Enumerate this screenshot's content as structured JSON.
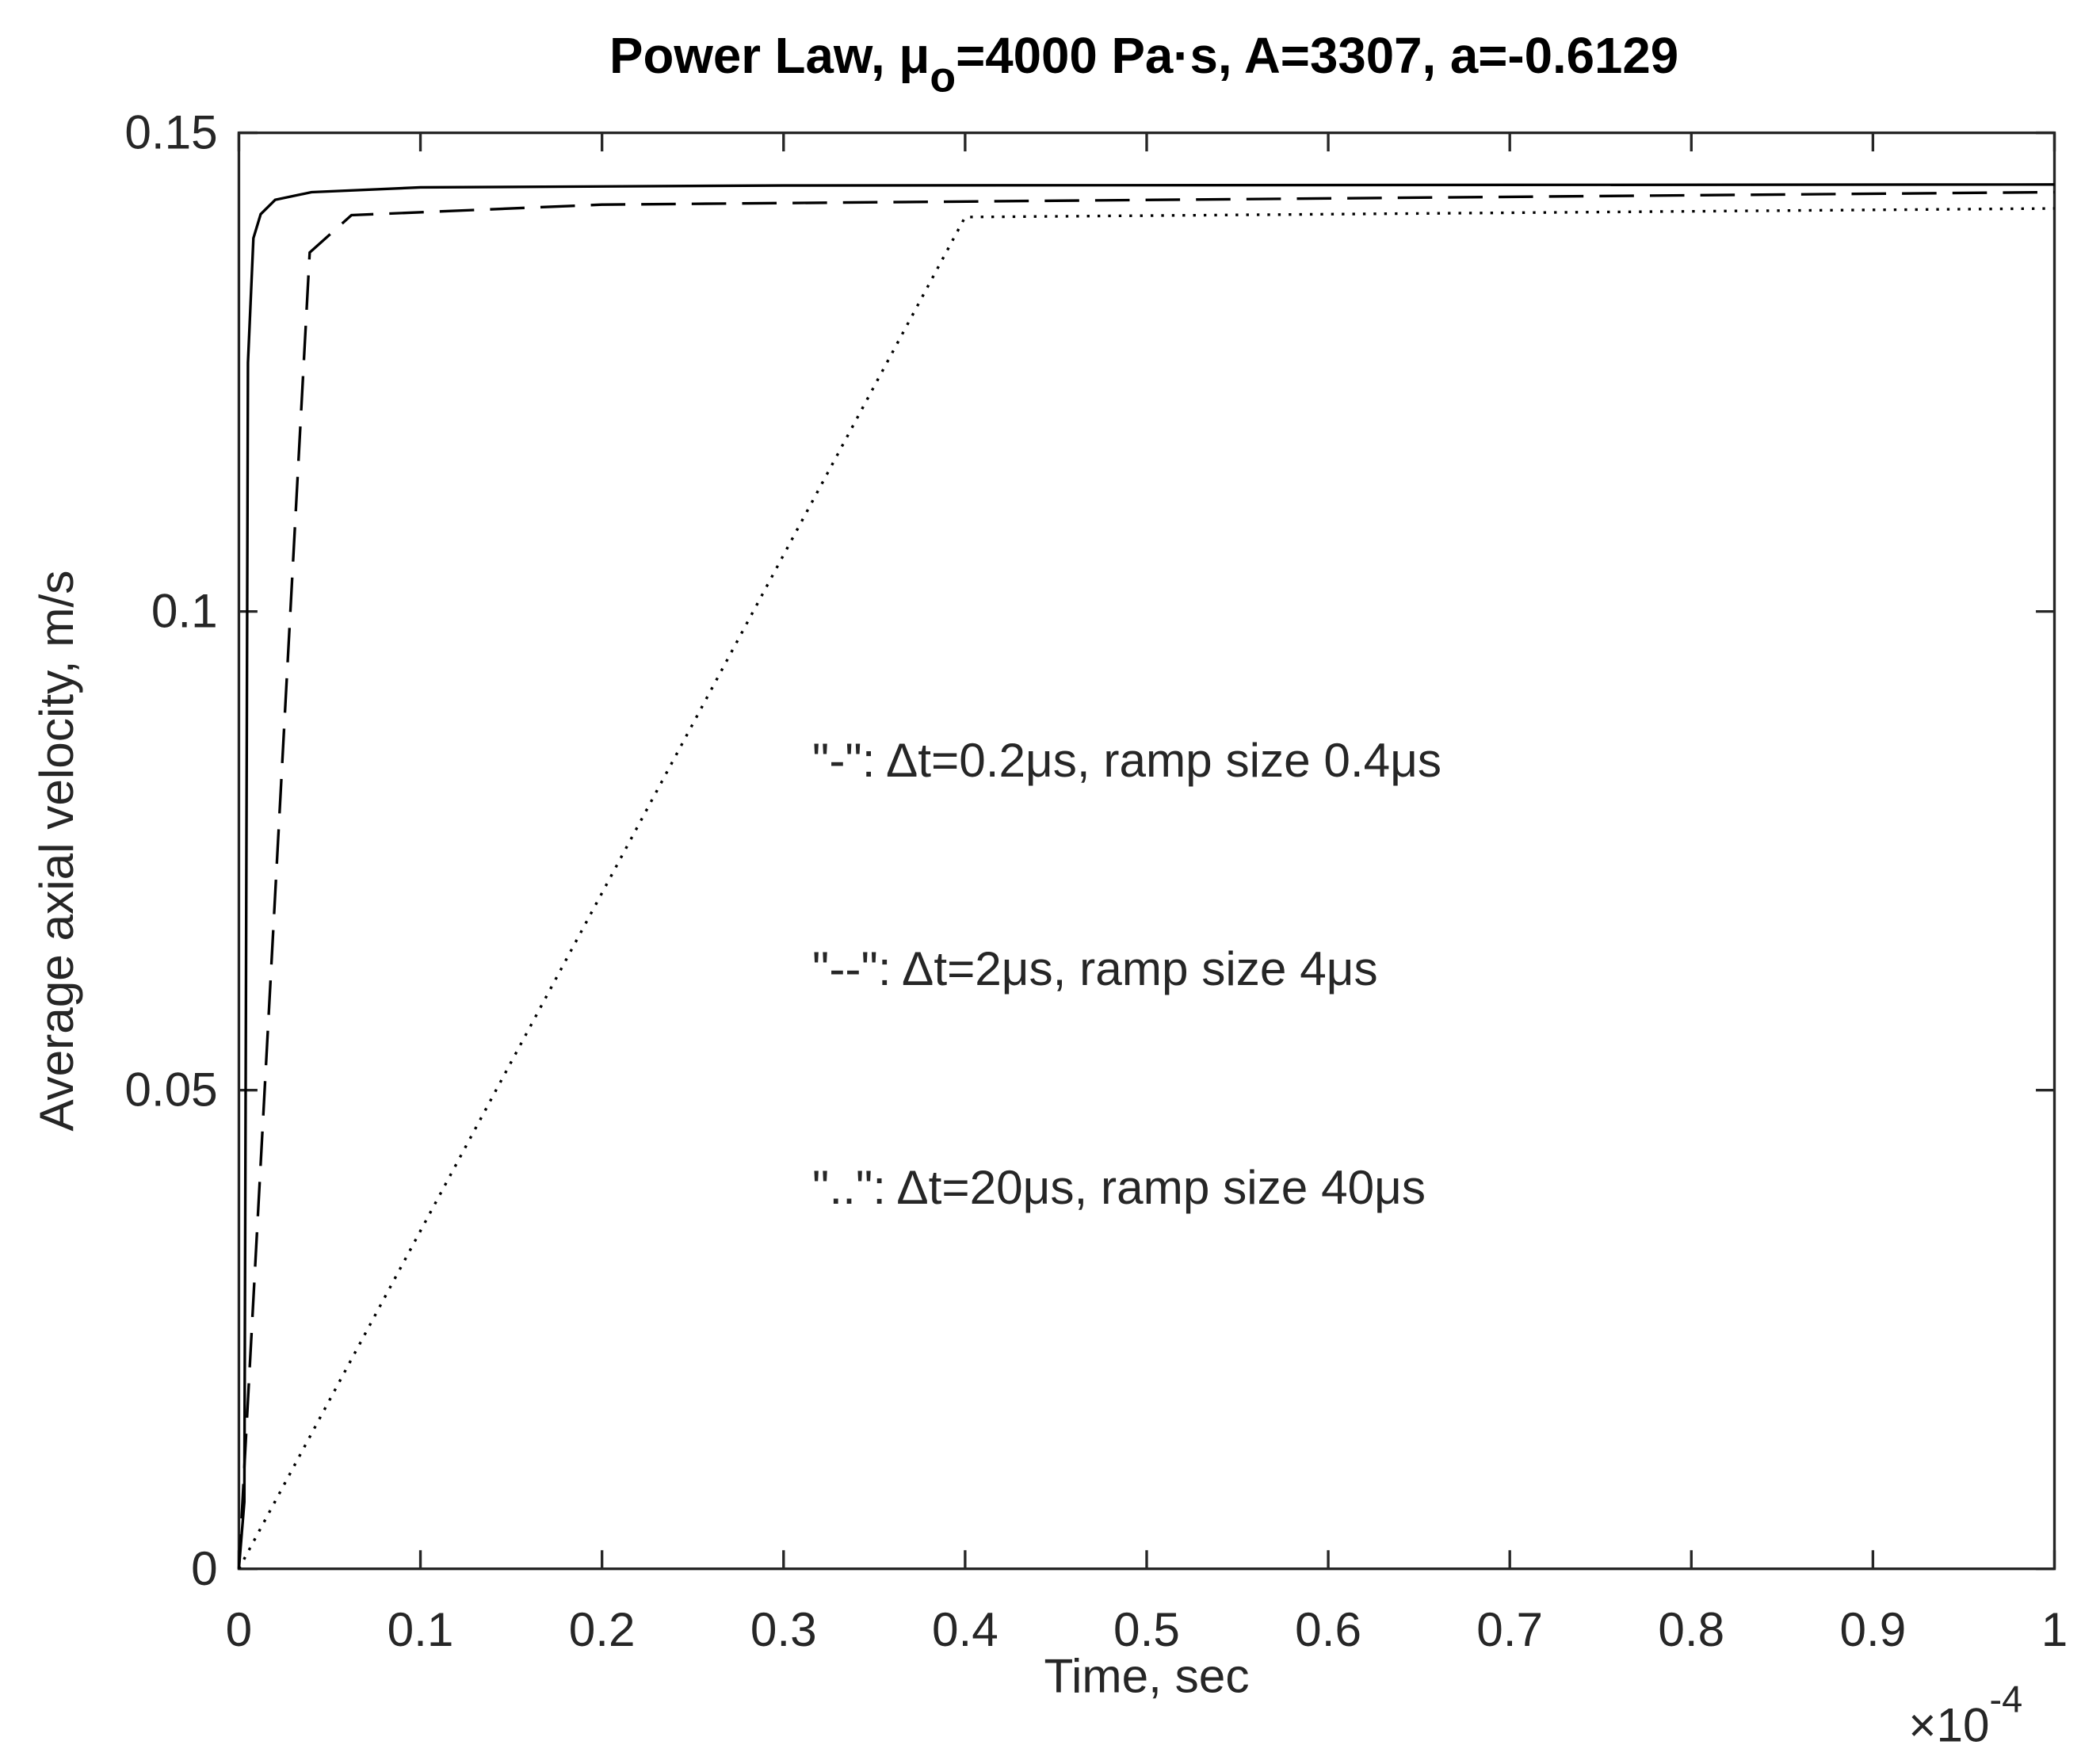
{
  "chart_data": {
    "type": "line",
    "title": [
      "Power Law, μ",
      "o",
      "=4000 Pa·s, A=3307, a=-0.6129"
    ],
    "x_label": "Time, sec",
    "y_label": "Average axial velocity, m/s",
    "x_exponent": {
      "base": "×10",
      "power": "-4"
    },
    "xlim": [
      0,
      1
    ],
    "ylim": [
      0,
      0.15
    ],
    "xticks": [
      0,
      0.1,
      0.2,
      0.3,
      0.4,
      0.5,
      0.6,
      0.7,
      0.8,
      0.9,
      1
    ],
    "yticks": [
      0,
      0.05,
      0.1,
      0.15
    ],
    "grid": false,
    "series": [
      {
        "style": "solid",
        "color": "#000000",
        "x": [
          0,
          0.003,
          0.005,
          0.008,
          0.012,
          0.02,
          0.04,
          0.1,
          0.3,
          1
        ],
        "values": [
          0,
          0.007,
          0.126,
          0.139,
          0.1415,
          0.143,
          0.1438,
          0.1443,
          0.1445,
          0.1446
        ]
      },
      {
        "style": "dashed",
        "color": "#000000",
        "x": [
          0,
          0.039,
          0.062,
          0.2,
          1
        ],
        "values": [
          0,
          0.1375,
          0.1414,
          0.1425,
          0.1438
        ]
      },
      {
        "style": "dotted",
        "color": "#000000",
        "x": [
          0,
          0.4,
          1
        ],
        "values": [
          0,
          0.1412,
          0.1421
        ]
      }
    ],
    "annotations": [
      "\"-\": Δt=0.2μs, ramp size 0.4μs",
      "\"--\": Δt=2μs, ramp size 4μs",
      "\"..\": Δt=20μs, ramp size 40μs"
    ]
  }
}
